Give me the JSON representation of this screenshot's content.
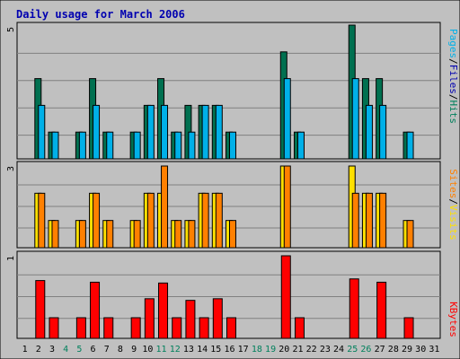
{
  "chart_data": [
    {
      "type": "bar",
      "title": "Daily usage for March 2006",
      "panel": "hits-files-pages",
      "ymax_label": "5",
      "ylim": [
        0,
        5
      ],
      "legend": {
        "labels": [
          "Pages",
          "Files",
          "Hits"
        ],
        "separator": "/",
        "placement": "right-vertical"
      },
      "categories": [
        "1",
        "2",
        "3",
        "4",
        "5",
        "6",
        "7",
        "8",
        "9",
        "10",
        "11",
        "12",
        "13",
        "14",
        "15",
        "16",
        "17",
        "18",
        "19",
        "20",
        "21",
        "22",
        "23",
        "24",
        "25",
        "26",
        "27",
        "28",
        "29",
        "30",
        "31"
      ],
      "series": [
        {
          "name": "Hits",
          "color": "#007050",
          "values": [
            0,
            3,
            1,
            0,
            1,
            3,
            1,
            0,
            1,
            2,
            3,
            1,
            2,
            2,
            2,
            1,
            0,
            0,
            0,
            4,
            1,
            0,
            0,
            0,
            5,
            3,
            3,
            0,
            1,
            0,
            0
          ]
        },
        {
          "name": "Files",
          "color": "#00b0e8",
          "values": [
            0,
            2,
            1,
            0,
            1,
            2,
            1,
            0,
            1,
            2,
            2,
            1,
            1,
            2,
            2,
            1,
            0,
            0,
            0,
            3,
            1,
            0,
            0,
            0,
            3,
            2,
            2,
            0,
            1,
            0,
            0
          ]
        },
        {
          "name": "Pages",
          "color": "#00b0e8",
          "values": [
            0,
            0,
            0,
            0,
            0,
            0,
            0,
            0,
            0,
            0,
            0,
            0,
            0,
            0,
            0,
            0,
            0,
            0,
            0,
            0,
            0,
            0,
            0,
            0,
            0,
            0,
            0,
            0,
            0,
            0,
            0
          ]
        }
      ]
    },
    {
      "type": "bar",
      "panel": "sites-visits",
      "ymax_label": "3",
      "ylim": [
        0,
        3
      ],
      "legend": {
        "labels": [
          "Sites",
          "Visits"
        ],
        "separator": "/",
        "placement": "right-vertical"
      },
      "categories": [
        "1",
        "2",
        "3",
        "4",
        "5",
        "6",
        "7",
        "8",
        "9",
        "10",
        "11",
        "12",
        "13",
        "14",
        "15",
        "16",
        "17",
        "18",
        "19",
        "20",
        "21",
        "22",
        "23",
        "24",
        "25",
        "26",
        "27",
        "28",
        "29",
        "30",
        "31"
      ],
      "series": [
        {
          "name": "Visits",
          "color": "#ffe000",
          "values": [
            0,
            2,
            1,
            0,
            1,
            2,
            1,
            0,
            1,
            2,
            2,
            1,
            1,
            2,
            2,
            1,
            0,
            0,
            0,
            3,
            0,
            0,
            0,
            0,
            3,
            2,
            2,
            0,
            1,
            0,
            0
          ]
        },
        {
          "name": "Sites",
          "color": "#ff8000",
          "values": [
            0,
            2,
            1,
            0,
            1,
            2,
            1,
            0,
            1,
            2,
            3,
            1,
            1,
            2,
            2,
            1,
            0,
            0,
            0,
            3,
            0,
            0,
            0,
            0,
            2,
            2,
            2,
            0,
            1,
            0,
            0
          ]
        }
      ]
    },
    {
      "type": "bar",
      "panel": "kbytes",
      "ymax_label": "1",
      "ylim": [
        0,
        1
      ],
      "legend": {
        "labels": [
          "KBytes"
        ],
        "separator": "",
        "placement": "right-vertical"
      },
      "categories": [
        "1",
        "2",
        "3",
        "4",
        "5",
        "6",
        "7",
        "8",
        "9",
        "10",
        "11",
        "12",
        "13",
        "14",
        "15",
        "16",
        "17",
        "18",
        "19",
        "20",
        "21",
        "22",
        "23",
        "24",
        "25",
        "26",
        "27",
        "28",
        "29",
        "30",
        "31"
      ],
      "series": [
        {
          "name": "KBytes",
          "color": "#ff0000",
          "values": [
            0,
            0.7,
            0.25,
            0,
            0.25,
            0.68,
            0.25,
            0,
            0.25,
            0.48,
            0.67,
            0.25,
            0.46,
            0.25,
            0.48,
            0.25,
            0,
            0,
            0,
            1.0,
            0.25,
            0,
            0,
            0,
            0.72,
            0,
            0.68,
            0,
            0.25,
            0,
            0
          ]
        }
      ]
    }
  ],
  "xaxis": {
    "labels": [
      "1",
      "2",
      "3",
      "4",
      "5",
      "6",
      "7",
      "8",
      "9",
      "10",
      "11",
      "12",
      "13",
      "14",
      "15",
      "16",
      "17",
      "18",
      "19",
      "20",
      "21",
      "22",
      "23",
      "24",
      "25",
      "26",
      "27",
      "28",
      "29",
      "30",
      "31"
    ],
    "weekend_days": [
      4,
      5,
      11,
      12,
      18,
      19,
      25,
      26
    ],
    "weekday_color": "#000000",
    "weekend_color": "#00805c"
  },
  "colors": {
    "frame_bg": "#c0c0c0",
    "plot_bg": "#c0c0c0",
    "gridline": "#808080",
    "title": "#0000b0",
    "pages": "#00b0e8",
    "files": "#0000b0",
    "hits": "#00805c",
    "sites": "#ff8000",
    "visits": "#ffe000",
    "kbytes": "#ff0000"
  }
}
